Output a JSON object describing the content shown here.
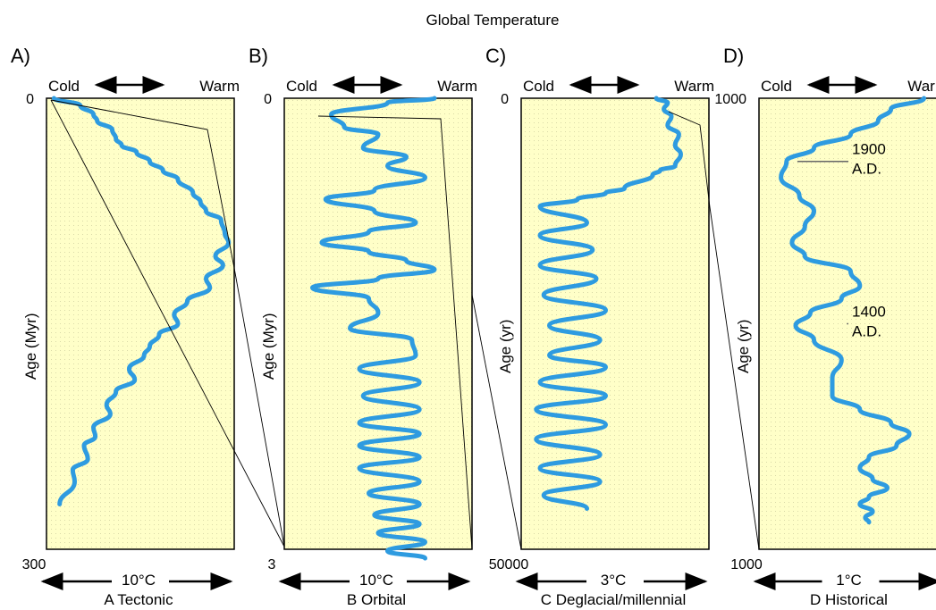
{
  "title": "Global Temperature",
  "colors": {
    "panel_fill": "#FFFFC8",
    "dot": "#D9D9A8",
    "curve": "#2E9BE0",
    "frame": "#000000"
  },
  "cold_label": "Cold",
  "warm_label": "Warm",
  "chart_data": [
    {
      "type": "line",
      "letter": "A)",
      "ylabel": "Age (Myr)",
      "ytop": "0",
      "ybottom": "300",
      "scale": "10°C",
      "caption": "A Tectonic",
      "x": [
        0.04,
        0.18,
        0.25,
        0.27,
        0.35,
        0.37,
        0.4,
        0.48,
        0.55,
        0.62,
        0.7,
        0.78,
        0.82,
        0.85,
        0.93,
        0.95,
        0.97,
        0.9,
        0.94,
        0.85,
        0.87,
        0.75,
        0.68,
        0.7,
        0.6,
        0.55,
        0.52,
        0.44,
        0.47,
        0.37,
        0.32,
        0.34,
        0.25,
        0.26,
        0.2,
        0.22,
        0.14,
        0.15,
        0.07
      ],
      "y": [
        0,
        8,
        18,
        25,
        35,
        45,
        52,
        60,
        70,
        80,
        90,
        105,
        115,
        125,
        135,
        150,
        160,
        175,
        185,
        200,
        210,
        225,
        240,
        250,
        262,
        275,
        285,
        300,
        312,
        325,
        340,
        350,
        365,
        375,
        385,
        400,
        412,
        425,
        450
      ]
    },
    {
      "type": "line",
      "letter": "B)",
      "ylabel": "Age (Myr)",
      "ytop": "0",
      "ybottom": "3",
      "scale": "10°C",
      "caption": "B Orbital",
      "x": [
        0.8,
        0.55,
        0.25,
        0.32,
        0.5,
        0.42,
        0.65,
        0.55,
        0.75,
        0.48,
        0.22,
        0.48,
        0.7,
        0.45,
        0.2,
        0.45,
        0.65,
        0.8,
        0.5,
        0.15,
        0.45,
        0.5,
        0.35,
        0.68,
        0.7,
        0.4,
        0.72,
        0.42,
        0.72,
        0.4,
        0.72,
        0.4,
        0.72,
        0.4,
        0.72,
        0.45,
        0.72,
        0.48,
        0.72,
        0.5,
        0.75,
        0.55,
        0.75
      ],
      "y": [
        0,
        5,
        18,
        32,
        40,
        55,
        65,
        75,
        88,
        102,
        112,
        125,
        138,
        148,
        160,
        170,
        180,
        190,
        200,
        210,
        222,
        238,
        255,
        268,
        285,
        300,
        315,
        330,
        345,
        360,
        372,
        385,
        398,
        410,
        425,
        438,
        450,
        462,
        472,
        482,
        492,
        502,
        510
      ]
    },
    {
      "type": "line",
      "letter": "C)",
      "ylabel": "Age (yr)",
      "ytop": "0",
      "ybottom": "50000",
      "scale": "3°C",
      "caption": "C Deglacial/millennial",
      "x": [
        0.72,
        0.78,
        0.76,
        0.8,
        0.78,
        0.84,
        0.82,
        0.85,
        0.82,
        0.74,
        0.7,
        0.55,
        0.45,
        0.3,
        0.1,
        0.35,
        0.1,
        0.38,
        0.1,
        0.4,
        0.12,
        0.45,
        0.15,
        0.42,
        0.15,
        0.45,
        0.1,
        0.45,
        0.08,
        0.45,
        0.08,
        0.42,
        0.1,
        0.42,
        0.12,
        0.35
      ],
      "y": [
        0,
        5,
        12,
        20,
        30,
        40,
        52,
        62,
        75,
        80,
        85,
        100,
        105,
        112,
        120,
        138,
        152,
        168,
        185,
        200,
        218,
        235,
        252,
        268,
        285,
        298,
        315,
        330,
        345,
        362,
        378,
        395,
        410,
        425,
        440,
        455
      ]
    },
    {
      "type": "line",
      "letter": "D)",
      "ylabel": "Age (yr)",
      "ytop": "1000",
      "ybottom": "1000",
      "scale": "1°C",
      "caption": "D Historical",
      "annotations": [
        {
          "text1": "1900",
          "text2": "A.D.",
          "y": 70,
          "x": 0.18
        },
        {
          "text1": "1400",
          "text2": "A.D.",
          "y": 250,
          "x": 0.45
        }
      ],
      "x": [
        0.9,
        0.72,
        0.65,
        0.5,
        0.3,
        0.15,
        0.12,
        0.22,
        0.3,
        0.25,
        0.18,
        0.25,
        0.5,
        0.55,
        0.45,
        0.28,
        0.2,
        0.3,
        0.45,
        0.4,
        0.4,
        0.55,
        0.72,
        0.82,
        0.75,
        0.6,
        0.55,
        0.62,
        0.7,
        0.6,
        0.55,
        0.62,
        0.58,
        0.6
      ],
      "y": [
        0,
        12,
        25,
        40,
        55,
        70,
        88,
        108,
        125,
        142,
        160,
        175,
        192,
        208,
        222,
        238,
        252,
        268,
        290,
        310,
        330,
        345,
        360,
        372,
        385,
        398,
        410,
        422,
        432,
        442,
        450,
        458,
        465,
        470
      ]
    }
  ]
}
